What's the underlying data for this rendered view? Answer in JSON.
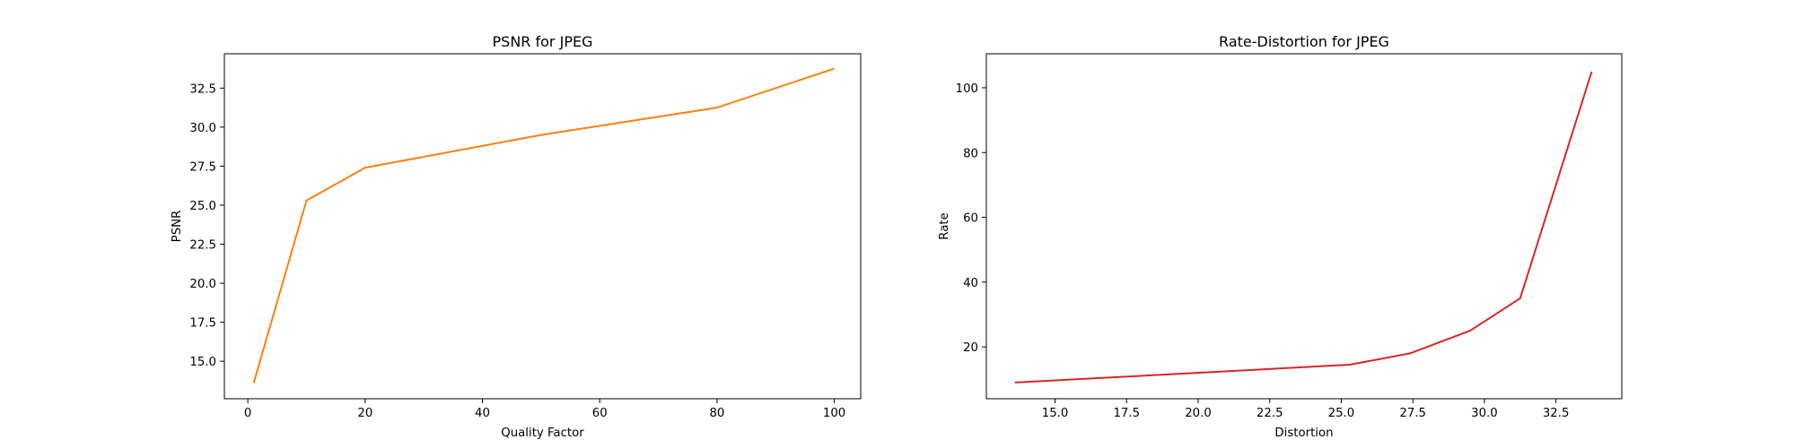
{
  "chart_data": [
    {
      "type": "line",
      "title": "PSNR for JPEG",
      "xlabel": "Quality Factor",
      "ylabel": "PSNR",
      "xlim": [
        -4,
        104.5
      ],
      "ylim": [
        12.6,
        34.7
      ],
      "xticks": [
        0,
        20,
        40,
        60,
        80,
        100
      ],
      "xtick_labels": [
        "0",
        "20",
        "40",
        "60",
        "80",
        "100"
      ],
      "yticks": [
        15.0,
        17.5,
        20.0,
        22.5,
        25.0,
        27.5,
        30.0,
        32.5
      ],
      "ytick_labels": [
        "15.0",
        "17.5",
        "20.0",
        "22.5",
        "25.0",
        "27.5",
        "30.0",
        "32.5"
      ],
      "grid": false,
      "series": [
        {
          "color": "#ff7f0e",
          "x": [
            1,
            10,
            20,
            50,
            80,
            100
          ],
          "y": [
            13.6,
            25.3,
            27.4,
            29.5,
            31.25,
            33.75
          ]
        }
      ]
    },
    {
      "type": "line",
      "title": "Rate-Distortion for JPEG",
      "xlabel": "Distortion",
      "ylabel": "Rate",
      "xlim": [
        12.6,
        34.8
      ],
      "ylim": [
        4,
        110.5
      ],
      "xticks": [
        15.0,
        17.5,
        20.0,
        22.5,
        25.0,
        27.5,
        30.0,
        32.5
      ],
      "xtick_labels": [
        "15.0",
        "17.5",
        "20.0",
        "22.5",
        "25.0",
        "27.5",
        "30.0",
        "32.5"
      ],
      "yticks": [
        20,
        40,
        60,
        80,
        100
      ],
      "ytick_labels": [
        "20",
        "40",
        "60",
        "80",
        "100"
      ],
      "grid": false,
      "series": [
        {
          "color": "#d62728",
          "x": [
            13.6,
            25.3,
            27.4,
            29.5,
            31.25,
            33.75
          ],
          "y": [
            9,
            14.5,
            18,
            25,
            35,
            105
          ]
        }
      ]
    }
  ]
}
